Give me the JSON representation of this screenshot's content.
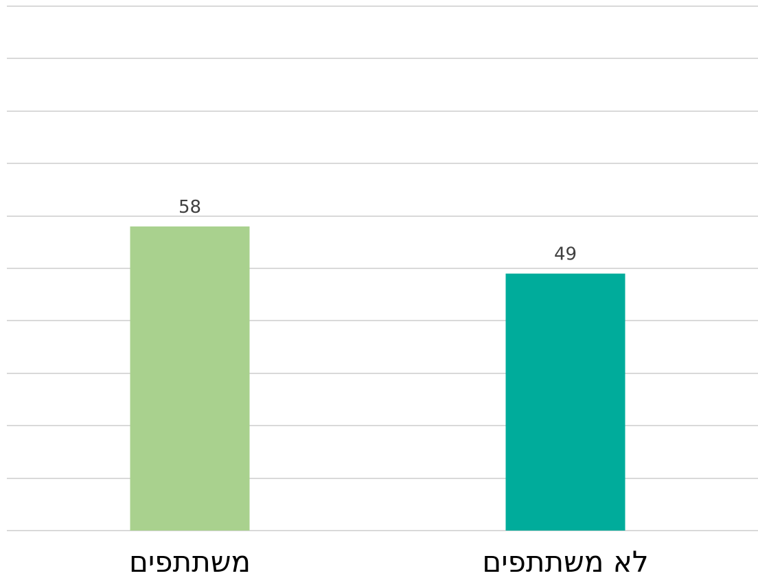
{
  "chart_data": {
    "type": "bar",
    "categories": [
      "משתתפים",
      "לא משתתפים"
    ],
    "values": [
      58,
      49
    ],
    "colors": [
      "#a9d18e",
      "#00ac9b"
    ],
    "data_labels": [
      "58",
      "49"
    ],
    "title": "",
    "xlabel": "",
    "ylabel": "",
    "ylim": [
      0,
      100
    ],
    "gridlines": true,
    "grid_step": 10,
    "legend": "none"
  }
}
